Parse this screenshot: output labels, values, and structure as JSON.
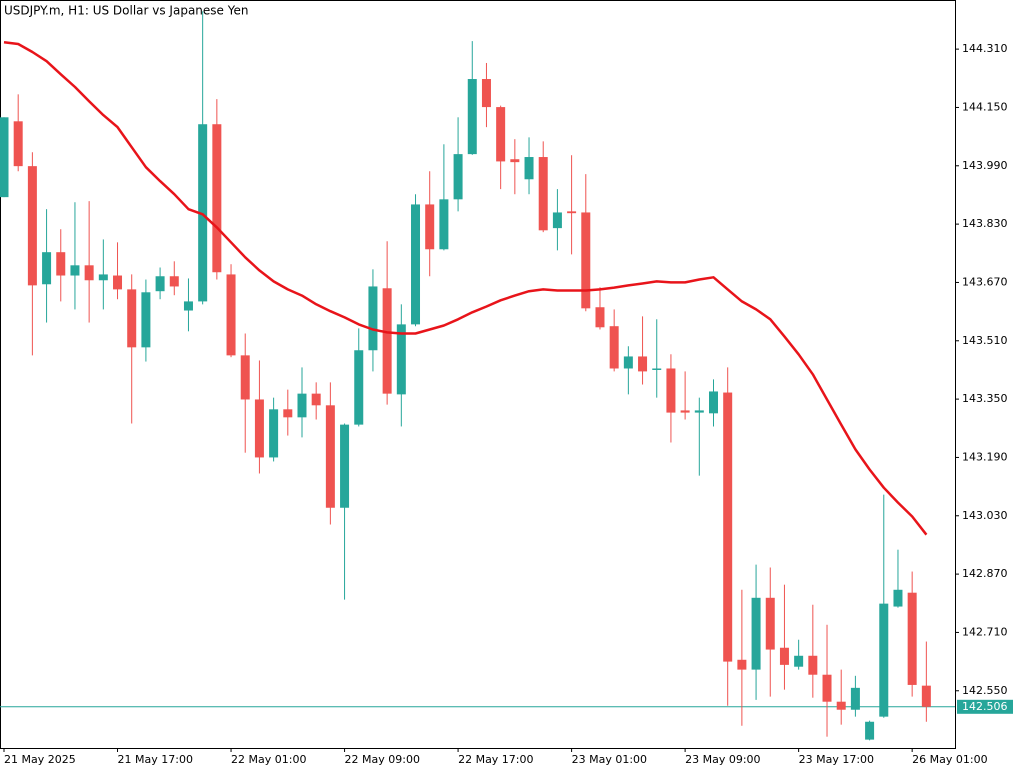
{
  "chart_data": {
    "type": "candlestick",
    "title": "USDJPY.m, H1:  US Dollar vs Japanese Yen",
    "categories": [
      "21 May 2025",
      null,
      null,
      null,
      null,
      null,
      null,
      null,
      "21 May 17:00",
      null,
      null,
      null,
      null,
      null,
      null,
      null,
      "22 May 01:00",
      null,
      null,
      null,
      null,
      null,
      null,
      null,
      "22 May 09:00",
      null,
      null,
      null,
      null,
      null,
      null,
      null,
      "22 May 17:00",
      null,
      null,
      null,
      null,
      null,
      null,
      null,
      "23 May 01:00",
      null,
      null,
      null,
      null,
      null,
      null,
      null,
      "23 May 09:00",
      null,
      null,
      null,
      null,
      null,
      null,
      null,
      "23 May 17:00",
      null,
      null,
      null,
      null,
      null,
      null,
      null,
      "26 May 01:00",
      null
    ],
    "open": [
      143.904,
      144.112,
      143.989,
      143.665,
      143.753,
      143.689,
      143.717,
      143.676,
      143.689,
      143.651,
      143.492,
      143.646,
      143.687,
      143.593,
      143.618,
      144.104,
      143.692,
      143.47,
      143.349,
      143.19,
      143.322,
      143.3,
      143.365,
      143.333,
      143.052,
      143.28,
      143.484,
      143.654,
      143.363,
      143.555,
      143.884,
      143.761,
      143.898,
      144.022,
      144.228,
      144.151,
      144.008,
      143.953,
      144.014,
      143.819,
      143.865,
      143.862,
      143.602,
      143.55,
      143.434,
      143.467,
      143.431,
      143.434,
      143.319,
      143.313,
      143.311,
      143.368,
      142.635,
      142.608,
      142.805,
      142.668,
      142.616,
      142.646,
      142.594,
      142.52,
      142.498,
      142.416,
      142.479,
      142.781,
      142.819,
      142.564
    ],
    "high": [
      144.123,
      144.186,
      144.027,
      143.871,
      143.816,
      143.89,
      143.893,
      143.788,
      143.78,
      143.692,
      143.678,
      143.711,
      143.728,
      143.681,
      144.414,
      144.173,
      143.72,
      143.53,
      143.456,
      143.354,
      143.376,
      143.437,
      143.396,
      143.396,
      143.283,
      143.544,
      143.706,
      143.783,
      143.61,
      143.912,
      143.975,
      144.049,
      144.123,
      144.332,
      144.272,
      144.155,
      144.063,
      144.068,
      144.057,
      143.926,
      144.019,
      143.967,
      143.657,
      143.596,
      143.495,
      143.577,
      143.569,
      143.473,
      143.426,
      143.354,
      143.404,
      143.437,
      142.827,
      142.896,
      142.888,
      142.841,
      142.69,
      142.786,
      142.731,
      142.608,
      142.591,
      142.468,
      143.088,
      142.937,
      142.877,
      142.685
    ],
    "low": [
      143.904,
      143.975,
      143.47,
      143.56,
      143.618,
      143.596,
      143.56,
      143.596,
      143.624,
      143.283,
      143.453,
      143.624,
      143.635,
      143.536,
      143.61,
      143.678,
      143.465,
      143.203,
      143.146,
      143.179,
      143.25,
      143.245,
      143.294,
      143.006,
      142.8,
      143.275,
      143.426,
      143.335,
      143.275,
      143.55,
      143.687,
      143.758,
      143.865,
      144.02,
      144.096,
      143.926,
      143.912,
      143.912,
      143.808,
      143.758,
      143.747,
      143.591,
      143.541,
      143.426,
      143.363,
      143.39,
      143.354,
      143.231,
      143.294,
      143.14,
      143.275,
      142.509,
      142.454,
      142.525,
      142.534,
      142.553,
      142.608,
      142.531,
      142.424,
      142.457,
      142.479,
      142.414,
      142.476,
      142.778,
      142.534,
      142.465
    ],
    "close": [
      144.123,
      143.989,
      143.662,
      143.753,
      143.689,
      143.717,
      143.676,
      143.692,
      143.651,
      143.492,
      143.643,
      143.687,
      143.659,
      143.618,
      144.104,
      143.698,
      143.47,
      143.349,
      143.19,
      143.322,
      143.3,
      143.365,
      143.333,
      143.052,
      143.28,
      143.484,
      143.659,
      143.365,
      143.555,
      143.884,
      143.761,
      143.898,
      144.022,
      144.228,
      144.151,
      144.002,
      144.0,
      144.014,
      143.813,
      143.862,
      143.86,
      143.599,
      143.547,
      143.434,
      143.467,
      143.426,
      143.434,
      143.313,
      143.313,
      143.319,
      143.371,
      142.63,
      142.608,
      142.805,
      142.663,
      142.621,
      142.646,
      142.594,
      142.52,
      142.498,
      142.558,
      142.465,
      142.789,
      142.827,
      142.566,
      142.506
    ],
    "up_color": "#26a69a",
    "down_color": "#ef5350",
    "moving_average": {
      "color": "#e8141a",
      "values": [
        144.329,
        144.324,
        144.302,
        144.277,
        144.241,
        144.206,
        144.167,
        144.129,
        144.096,
        144.041,
        143.986,
        143.948,
        143.912,
        143.871,
        143.857,
        143.821,
        143.78,
        143.739,
        143.703,
        143.673,
        143.651,
        143.634,
        143.61,
        143.591,
        143.574,
        143.555,
        143.541,
        143.533,
        143.53,
        143.53,
        143.541,
        143.552,
        143.569,
        143.588,
        143.604,
        143.621,
        143.634,
        143.646,
        143.651,
        143.648,
        143.648,
        143.648,
        143.651,
        143.656,
        143.662,
        143.667,
        143.673,
        143.67,
        143.67,
        143.678,
        143.684,
        143.651,
        143.618,
        143.596,
        143.569,
        143.522,
        143.473,
        143.418,
        143.349,
        143.28,
        143.212,
        143.157,
        143.107,
        143.066,
        143.028,
        142.978
      ]
    },
    "current_price": 142.506,
    "current_price_color": "#26a69a",
    "ylim": [
      142.393,
      144.442
    ],
    "yticks": [
      {
        "value": 144.31,
        "label": "144.310"
      },
      {
        "value": 144.15,
        "label": "144.150"
      },
      {
        "value": 143.99,
        "label": "143.990"
      },
      {
        "value": 143.83,
        "label": "143.830"
      },
      {
        "value": 143.67,
        "label": "143.670"
      },
      {
        "value": 143.51,
        "label": "143.510"
      },
      {
        "value": 143.35,
        "label": "143.350"
      },
      {
        "value": 143.19,
        "label": "143.190"
      },
      {
        "value": 143.03,
        "label": "143.030"
      },
      {
        "value": 142.87,
        "label": "142.870"
      },
      {
        "value": 142.71,
        "label": "142.710"
      },
      {
        "value": 142.55,
        "label": "142.550"
      }
    ],
    "grid": false
  }
}
